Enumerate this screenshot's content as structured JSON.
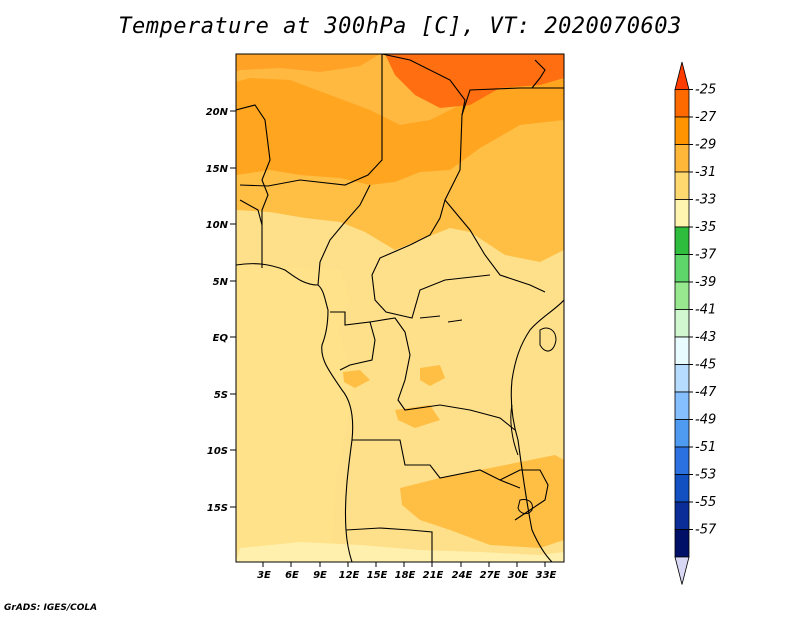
{
  "title": "Temperature at 300hPa [C], VT: 2020070603",
  "credit": "GrADS: IGES/COLA",
  "map": {
    "lat_ticks": [
      "20N",
      "15N",
      "10N",
      "5N",
      "EQ",
      "5S",
      "10S",
      "15S"
    ],
    "lon_ticks": [
      "3E",
      "6E",
      "9E",
      "12E",
      "15E",
      "18E",
      "21E",
      "24E",
      "27E",
      "30E",
      "33E"
    ]
  },
  "colorbar": {
    "levels": [
      "-25",
      "-27",
      "-29",
      "-31",
      "-33",
      "-35",
      "-37",
      "-39",
      "-41",
      "-43",
      "-45",
      "-47",
      "-49",
      "-51",
      "-53",
      "-55",
      "-57"
    ],
    "colors": [
      "#ff3d00",
      "#ff6a00",
      "#ff9400",
      "#ffb73a",
      "#ffd870",
      "#fff4b0",
      "#2ebd3c",
      "#5ed66a",
      "#98e88f",
      "#d0f7cf",
      "#e8fbff",
      "#b6ddff",
      "#86bfff",
      "#4f9bf2",
      "#2b72e0",
      "#124fc1",
      "#0a2d97",
      "#001066",
      "#d8d8f5"
    ]
  }
}
